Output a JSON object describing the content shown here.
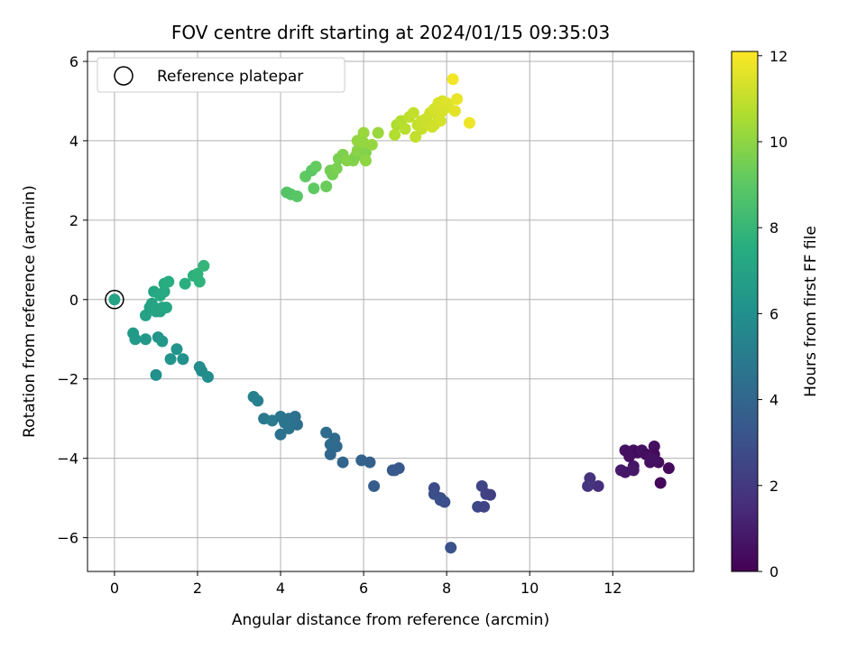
{
  "chart_data": {
    "type": "scatter",
    "title": "FOV centre drift starting at 2024/01/15 09:35:03",
    "xlabel": "Angular distance from reference (arcmin)",
    "ylabel": "Rotation from reference (arcmin)",
    "xlim": [
      -0.65,
      13.95
    ],
    "ylim": [
      -6.85,
      6.25
    ],
    "xticks": [
      0,
      2,
      4,
      6,
      8,
      10,
      12
    ],
    "yticks": [
      -6,
      -4,
      -2,
      0,
      2,
      4,
      6
    ],
    "grid": true,
    "legend": {
      "placement": "top-left",
      "entries": [
        "Reference platepar"
      ]
    },
    "reference_point": {
      "x": 0,
      "y": 0
    },
    "colorbar": {
      "label": "Hours from first FF file",
      "colormap": "viridis",
      "range": [
        0,
        12.1
      ],
      "ticks": [
        0,
        2,
        4,
        6,
        8,
        10,
        12
      ]
    },
    "series": [
      {
        "columns": [
          "x",
          "y",
          "hours"
        ],
        "points": [
          [
            0,
            0,
            7.0
          ],
          [
            12.3,
            -3.8,
            0.5
          ],
          [
            12.4,
            -3.9,
            0.4
          ],
          [
            12.5,
            -3.8,
            0.5
          ],
          [
            12.6,
            -3.85,
            0.3
          ],
          [
            12.7,
            -3.8,
            0.6
          ],
          [
            12.8,
            -3.9,
            0.4
          ],
          [
            13.0,
            -3.7,
            0.5
          ],
          [
            13.0,
            -3.9,
            0.3
          ],
          [
            12.2,
            -4.3,
            0.9
          ],
          [
            12.3,
            -4.35,
            0.8
          ],
          [
            12.5,
            -4.2,
            0.7
          ],
          [
            12.5,
            -4.3,
            0.8
          ],
          [
            12.9,
            -4.1,
            0.6
          ],
          [
            13.1,
            -4.1,
            0.4
          ],
          [
            12.9,
            -4.0,
            0.5
          ],
          [
            13.0,
            -4.05,
            0.6
          ],
          [
            13.35,
            -4.25,
            0.3
          ],
          [
            13.15,
            -4.62,
            0.2
          ],
          [
            12.4,
            -3.95,
            0.5
          ],
          [
            11.45,
            -4.5,
            1.7
          ],
          [
            11.4,
            -4.7,
            1.8
          ],
          [
            11.65,
            -4.7,
            1.6
          ],
          [
            8.85,
            -4.7,
            2.5
          ],
          [
            8.95,
            -4.9,
            2.4
          ],
          [
            9.05,
            -4.92,
            2.3
          ],
          [
            8.75,
            -5.22,
            2.6
          ],
          [
            8.9,
            -5.22,
            2.5
          ],
          [
            7.7,
            -4.75,
            2.8
          ],
          [
            7.7,
            -4.9,
            2.9
          ],
          [
            7.85,
            -5.0,
            2.8
          ],
          [
            7.95,
            -5.1,
            2.9
          ],
          [
            7.85,
            -5.05,
            3.0
          ],
          [
            8.1,
            -6.25,
            3.0
          ],
          [
            6.7,
            -4.3,
            3.3
          ],
          [
            6.85,
            -4.25,
            3.3
          ],
          [
            6.75,
            -4.3,
            3.4
          ],
          [
            6.25,
            -4.7,
            3.5
          ],
          [
            5.95,
            -4.05,
            3.8
          ],
          [
            6.15,
            -4.1,
            3.7
          ],
          [
            5.5,
            -4.1,
            3.9
          ],
          [
            5.2,
            -3.9,
            4.0
          ],
          [
            5.1,
            -3.35,
            4.3
          ],
          [
            5.3,
            -3.5,
            4.2
          ],
          [
            5.35,
            -3.7,
            4.1
          ],
          [
            5.2,
            -3.65,
            4.2
          ],
          [
            4.0,
            -2.95,
            4.7
          ],
          [
            4.2,
            -3.0,
            4.6
          ],
          [
            4.3,
            -3.1,
            4.6
          ],
          [
            4.35,
            -2.95,
            4.5
          ],
          [
            4.4,
            -3.15,
            4.4
          ],
          [
            4.2,
            -3.25,
            4.6
          ],
          [
            4.0,
            -3.4,
            4.5
          ],
          [
            4.1,
            -3.1,
            4.7
          ],
          [
            3.6,
            -3.0,
            4.9
          ],
          [
            3.8,
            -3.05,
            5.0
          ],
          [
            3.35,
            -2.45,
            5.2
          ],
          [
            3.45,
            -2.55,
            5.2
          ],
          [
            2.25,
            -1.95,
            5.8
          ],
          [
            2.1,
            -1.8,
            5.9
          ],
          [
            2.05,
            -1.7,
            5.8
          ],
          [
            1.5,
            -1.25,
            6.2
          ],
          [
            1.65,
            -1.5,
            6.1
          ],
          [
            1.35,
            -1.5,
            6.2
          ],
          [
            1.0,
            -1.9,
            6.0
          ],
          [
            1.05,
            -0.95,
            6.3
          ],
          [
            1.15,
            -1.05,
            6.4
          ],
          [
            0.45,
            -0.85,
            6.5
          ],
          [
            0.5,
            -1.0,
            6.5
          ],
          [
            0.75,
            -1.0,
            6.4
          ],
          [
            0.75,
            -0.4,
            6.9
          ],
          [
            0.85,
            -0.2,
            6.9
          ],
          [
            0.9,
            -0.1,
            7.0
          ],
          [
            1.0,
            -0.3,
            7.1
          ],
          [
            1.1,
            -0.3,
            7.0
          ],
          [
            1.15,
            -0.2,
            7.1
          ],
          [
            1.25,
            -0.2,
            7.2
          ],
          [
            0.95,
            0.2,
            7.2
          ],
          [
            1.1,
            0.1,
            7.3
          ],
          [
            1.2,
            0.2,
            7.3
          ],
          [
            1.2,
            0.4,
            7.4
          ],
          [
            1.3,
            0.45,
            7.5
          ],
          [
            1.7,
            0.4,
            7.6
          ],
          [
            1.9,
            0.6,
            7.7
          ],
          [
            2.0,
            0.65,
            7.8
          ],
          [
            2.05,
            0.45,
            7.8
          ],
          [
            2.15,
            0.85,
            7.9
          ],
          [
            4.15,
            2.7,
            8.8
          ],
          [
            4.25,
            2.65,
            8.8
          ],
          [
            4.4,
            2.6,
            8.9
          ],
          [
            4.6,
            3.1,
            9.1
          ],
          [
            4.75,
            3.25,
            9.0
          ],
          [
            4.85,
            3.35,
            9.2
          ],
          [
            4.8,
            2.8,
            9.1
          ],
          [
            5.1,
            2.85,
            9.3
          ],
          [
            5.2,
            3.25,
            9.5
          ],
          [
            5.25,
            3.15,
            9.5
          ],
          [
            5.35,
            3.3,
            9.6
          ],
          [
            5.4,
            3.55,
            9.6
          ],
          [
            5.5,
            3.65,
            9.7
          ],
          [
            5.6,
            3.5,
            9.8
          ],
          [
            5.75,
            3.5,
            9.8
          ],
          [
            5.8,
            3.6,
            9.7
          ],
          [
            5.85,
            3.75,
            9.9
          ],
          [
            5.95,
            3.85,
            9.9
          ],
          [
            6.05,
            3.7,
            9.8
          ],
          [
            5.85,
            4.0,
            10.1
          ],
          [
            6.0,
            4.2,
            10.2
          ],
          [
            6.05,
            3.5,
            10.0
          ],
          [
            6.2,
            3.9,
            10.1
          ],
          [
            6.35,
            4.2,
            10.2
          ],
          [
            6.0,
            3.95,
            10.1
          ],
          [
            6.75,
            4.15,
            10.7
          ],
          [
            6.8,
            4.4,
            10.6
          ],
          [
            6.9,
            4.5,
            10.7
          ],
          [
            7.0,
            4.3,
            10.8
          ],
          [
            7.1,
            4.6,
            10.9
          ],
          [
            7.2,
            4.7,
            11.0
          ],
          [
            7.3,
            4.4,
            11.0
          ],
          [
            7.4,
            4.5,
            11.1
          ],
          [
            7.5,
            4.55,
            11.2
          ],
          [
            7.6,
            4.7,
            11.2
          ],
          [
            7.7,
            4.8,
            11.3
          ],
          [
            7.8,
            4.95,
            11.4
          ],
          [
            7.9,
            5.0,
            11.4
          ],
          [
            8.0,
            4.95,
            11.5
          ],
          [
            7.8,
            4.6,
            11.3
          ],
          [
            7.7,
            4.4,
            11.2
          ],
          [
            7.4,
            4.3,
            11.1
          ],
          [
            7.25,
            4.1,
            11.0
          ],
          [
            7.55,
            4.45,
            11.15
          ],
          [
            7.85,
            4.5,
            11.35
          ],
          [
            8.05,
            4.85,
            11.5
          ],
          [
            8.2,
            4.75,
            11.6
          ],
          [
            8.25,
            5.05,
            11.7
          ],
          [
            8.15,
            5.55,
            11.9
          ],
          [
            8.55,
            4.45,
            11.8
          ],
          [
            7.65,
            4.35,
            11.25
          ],
          [
            7.9,
            4.75,
            11.4
          ]
        ]
      }
    ]
  }
}
